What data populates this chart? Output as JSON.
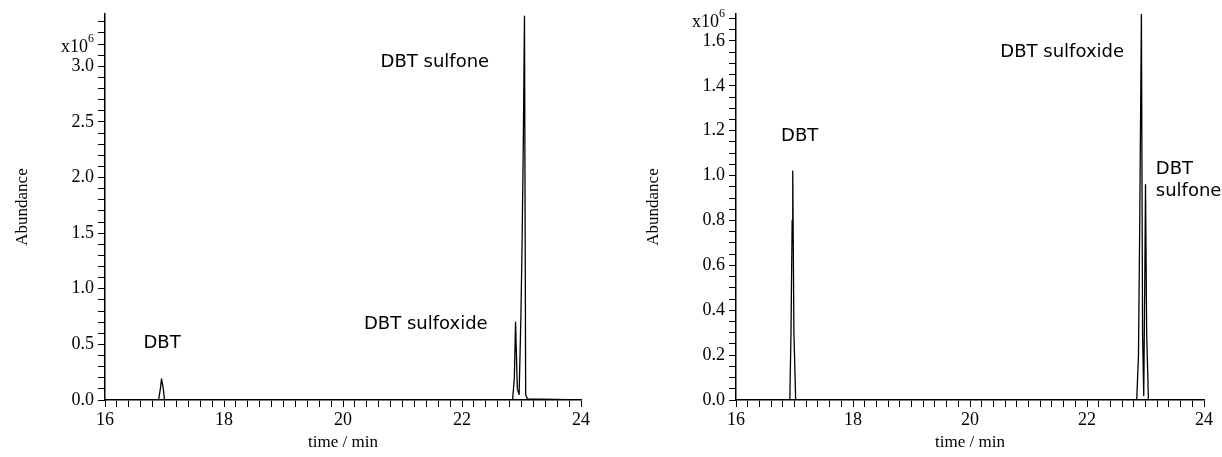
{
  "chart_data": [
    {
      "type": "line",
      "xlabel": "time / min",
      "ylabel": "Abundance",
      "xlim": [
        16,
        24
      ],
      "ylim": [
        0,
        3.47
      ],
      "xticks": [
        16,
        {
          "value": 16.2,
          "label": null
        },
        {
          "value": 16.4,
          "label": null
        },
        {
          "value": 16.6,
          "label": null
        },
        {
          "value": 16.8,
          "label": null
        },
        {
          "value": 17,
          "label": null
        },
        {
          "value": 17.2,
          "label": null
        },
        {
          "value": 17.4,
          "label": null
        },
        {
          "value": 17.6,
          "label": null
        },
        {
          "value": 17.8,
          "label": null
        },
        18,
        {
          "value": 18.2,
          "label": null
        },
        {
          "value": 18.4,
          "label": null
        },
        {
          "value": 18.6,
          "label": null
        },
        {
          "value": 18.8,
          "label": null
        },
        {
          "value": 19,
          "label": null
        },
        {
          "value": 19.2,
          "label": null
        },
        {
          "value": 19.4,
          "label": null
        },
        {
          "value": 19.6,
          "label": null
        },
        {
          "value": 19.8,
          "label": null
        },
        20,
        {
          "value": 20.2,
          "label": null
        },
        {
          "value": 20.4,
          "label": null
        },
        {
          "value": 20.6,
          "label": null
        },
        {
          "value": 20.8,
          "label": null
        },
        {
          "value": 21,
          "label": null
        },
        {
          "value": 21.2,
          "label": null
        },
        {
          "value": 21.4,
          "label": null
        },
        {
          "value": 21.6,
          "label": null
        },
        {
          "value": 21.8,
          "label": null
        },
        22,
        {
          "value": 22.2,
          "label": null
        },
        {
          "value": 22.4,
          "label": null
        },
        {
          "value": 22.6,
          "label": null
        },
        {
          "value": 22.8,
          "label": null
        },
        {
          "value": 23,
          "label": null
        },
        {
          "value": 23.2,
          "label": null
        },
        {
          "value": 23.4,
          "label": null
        },
        {
          "value": 23.6,
          "label": null
        },
        {
          "value": 23.8,
          "label": null
        },
        24
      ],
      "yticks": [
        {
          "value": 0,
          "label": "0.0"
        },
        {
          "value": 0.1,
          "label": null
        },
        {
          "value": 0.2,
          "label": null
        },
        {
          "value": 0.3,
          "label": null
        },
        {
          "value": 0.4,
          "label": null
        },
        0.5,
        {
          "value": 0.6,
          "label": null
        },
        {
          "value": 0.7,
          "label": null
        },
        {
          "value": 0.8,
          "label": null
        },
        {
          "value": 0.9,
          "label": null
        },
        {
          "value": 1,
          "label": "1.0"
        },
        {
          "value": 1.1,
          "label": null
        },
        {
          "value": 1.2,
          "label": null
        },
        {
          "value": 1.3,
          "label": null
        },
        {
          "value": 1.4,
          "label": null
        },
        1.5,
        {
          "value": 1.6,
          "label": null
        },
        {
          "value": 1.7,
          "label": null
        },
        {
          "value": 1.8,
          "label": null
        },
        {
          "value": 1.9,
          "label": null
        },
        {
          "value": 2,
          "label": "2.0"
        },
        {
          "value": 2.1,
          "label": null
        },
        {
          "value": 2.2,
          "label": null
        },
        {
          "value": 2.3,
          "label": null
        },
        {
          "value": 2.4,
          "label": null
        },
        2.5,
        {
          "value": 2.6,
          "label": null
        },
        {
          "value": 2.7,
          "label": null
        },
        {
          "value": 2.8,
          "label": null
        },
        {
          "value": 2.9,
          "label": null
        },
        {
          "value": 3,
          "label": "3.0"
        },
        {
          "value": 3.1,
          "label": null
        },
        {
          "value": 3.2,
          "label": null
        },
        {
          "value": 3.3,
          "label": null
        },
        {
          "value": 3.4,
          "label": null
        }
      ],
      "grid": false,
      "legend": false,
      "marker": "none",
      "line_style": "solid",
      "series": [
        {
          "color": "#000000",
          "x": [
            16,
            16.9,
            16.93,
            16.95,
            16.98,
            17.0,
            22.85,
            22.88,
            22.9,
            22.93,
            22.96,
            22.99,
            23.01,
            23.03,
            23.05,
            23.07,
            23.1,
            24
          ],
          "values": [
            0,
            0,
            0.1,
            0.19,
            0.1,
            0,
            0,
            0.2,
            0.7,
            0.1,
            0.05,
            0.75,
            1.4,
            2.3,
            3.45,
            0.05,
            0.01,
            0
          ]
        }
      ],
      "annotations": [
        "DBT",
        "DBT sulfoxide",
        "DBT sulfone",
        "x10$^{6}$"
      ]
    },
    {
      "type": "line",
      "xlabel": "time / min",
      "ylabel": "Abundance",
      "xlim": [
        16,
        24
      ],
      "ylim": [
        0,
        1.72
      ],
      "xticks": [
        16,
        {
          "value": 16.2,
          "label": null
        },
        {
          "value": 16.4,
          "label": null
        },
        {
          "value": 16.6,
          "label": null
        },
        {
          "value": 16.8,
          "label": null
        },
        {
          "value": 17,
          "label": null
        },
        {
          "value": 17.2,
          "label": null
        },
        {
          "value": 17.4,
          "label": null
        },
        {
          "value": 17.6,
          "label": null
        },
        {
          "value": 17.8,
          "label": null
        },
        18,
        {
          "value": 18.2,
          "label": null
        },
        {
          "value": 18.4,
          "label": null
        },
        {
          "value": 18.6,
          "label": null
        },
        {
          "value": 18.8,
          "label": null
        },
        {
          "value": 19,
          "label": null
        },
        {
          "value": 19.2,
          "label": null
        },
        {
          "value": 19.4,
          "label": null
        },
        {
          "value": 19.6,
          "label": null
        },
        {
          "value": 19.8,
          "label": null
        },
        20,
        {
          "value": 20.2,
          "label": null
        },
        {
          "value": 20.4,
          "label": null
        },
        {
          "value": 20.6,
          "label": null
        },
        {
          "value": 20.8,
          "label": null
        },
        {
          "value": 21,
          "label": null
        },
        {
          "value": 21.2,
          "label": null
        },
        {
          "value": 21.4,
          "label": null
        },
        {
          "value": 21.6,
          "label": null
        },
        {
          "value": 21.8,
          "label": null
        },
        22,
        {
          "value": 22.2,
          "label": null
        },
        {
          "value": 22.4,
          "label": null
        },
        {
          "value": 22.6,
          "label": null
        },
        {
          "value": 22.8,
          "label": null
        },
        {
          "value": 23,
          "label": null
        },
        {
          "value": 23.2,
          "label": null
        },
        {
          "value": 23.4,
          "label": null
        },
        {
          "value": 23.6,
          "label": null
        },
        {
          "value": 23.8,
          "label": null
        },
        24
      ],
      "yticks": [
        {
          "value": 0,
          "label": "0.0"
        },
        {
          "value": 0.05,
          "label": null
        },
        {
          "value": 0.1,
          "label": null
        },
        {
          "value": 0.15,
          "label": null
        },
        0.2,
        {
          "value": 0.25,
          "label": null
        },
        {
          "value": 0.3,
          "label": null
        },
        {
          "value": 0.35,
          "label": null
        },
        0.4,
        {
          "value": 0.45,
          "label": null
        },
        {
          "value": 0.5,
          "label": null
        },
        {
          "value": 0.55,
          "label": null
        },
        0.6,
        {
          "value": 0.65,
          "label": null
        },
        {
          "value": 0.7,
          "label": null
        },
        {
          "value": 0.75,
          "label": null
        },
        0.8,
        {
          "value": 0.85,
          "label": null
        },
        {
          "value": 0.9,
          "label": null
        },
        {
          "value": 0.95,
          "label": null
        },
        {
          "value": 1,
          "label": "1.0"
        },
        {
          "value": 1.05,
          "label": null
        },
        {
          "value": 1.1,
          "label": null
        },
        {
          "value": 1.15,
          "label": null
        },
        1.2,
        {
          "value": 1.25,
          "label": null
        },
        {
          "value": 1.3,
          "label": null
        },
        {
          "value": 1.35,
          "label": null
        },
        1.4,
        {
          "value": 1.45,
          "label": null
        },
        {
          "value": 1.5,
          "label": null
        },
        {
          "value": 1.55,
          "label": null
        },
        1.6,
        {
          "value": 1.65,
          "label": null
        },
        {
          "value": 1.7,
          "label": null
        }
      ],
      "grid": false,
      "legend": false,
      "marker": "none",
      "line_style": "solid",
      "series": [
        {
          "color": "#000000",
          "x": [
            16,
            16.92,
            16.94,
            16.96,
            16.97,
            16.99,
            17.02,
            22.85,
            22.88,
            22.9,
            22.93,
            22.95,
            22.97,
            22.99,
            23.0,
            23.02,
            23.05,
            24
          ],
          "values": [
            0,
            0,
            0.3,
            0.8,
            1.02,
            0.3,
            0,
            0,
            0.2,
            0.75,
            1.72,
            0.3,
            0.02,
            0.6,
            0.96,
            0.3,
            0,
            0
          ]
        }
      ],
      "annotations": [
        "DBT",
        "DBT sulfoxide",
        "DBT sulfone",
        "x10$^{6}$"
      ]
    }
  ]
}
